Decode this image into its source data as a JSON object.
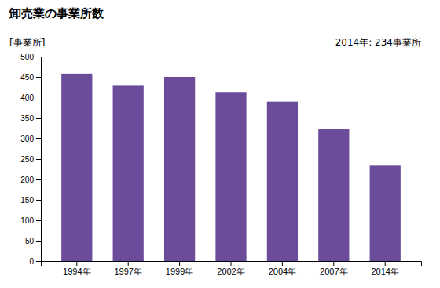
{
  "chart_data": {
    "type": "bar",
    "title": "卸売業の事業所数",
    "y_label": "[事業所]",
    "annotation": "2014年: 234事業所",
    "categories": [
      "1994年",
      "1997年",
      "1999年",
      "2002年",
      "2004年",
      "2007年",
      "2014年"
    ],
    "values": [
      458,
      430,
      450,
      413,
      391,
      323,
      234
    ],
    "color": "#6B4C9A",
    "ylim": [
      0,
      500
    ],
    "yticks": [
      0,
      50,
      100,
      150,
      200,
      250,
      300,
      350,
      400,
      450,
      500
    ],
    "grid": false
  }
}
